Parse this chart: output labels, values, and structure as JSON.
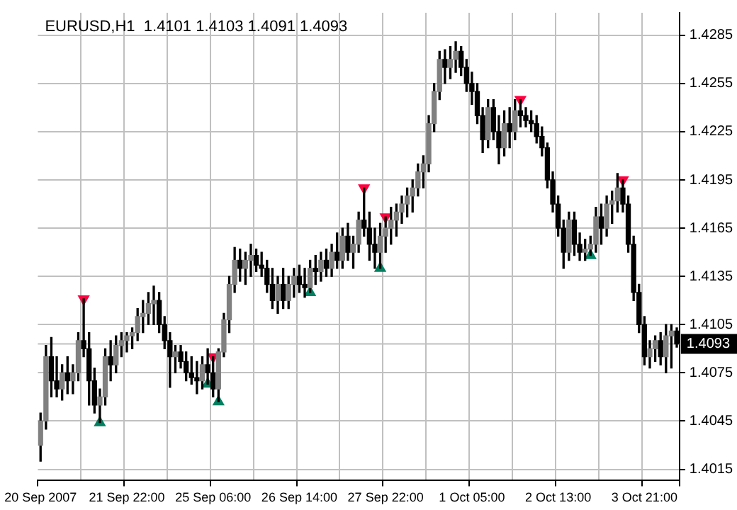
{
  "chart_data": {
    "type": "candlestick",
    "title": "EURUSD,H1  1.4101 1.4103 1.4091 1.4093",
    "categories": [
      "20 Sep 2007",
      null,
      null,
      null,
      null,
      null,
      null,
      null,
      null,
      null,
      null,
      null,
      null,
      null,
      null,
      null,
      "21 Sep 22:00",
      null,
      null,
      null,
      null,
      null,
      null,
      null,
      null,
      null,
      null,
      null,
      null,
      null,
      null,
      null,
      "25 Sep 06:00",
      null,
      null,
      null,
      null,
      null,
      null,
      null,
      null,
      null,
      null,
      null,
      null,
      null,
      null,
      null,
      "26 Sep 14:00",
      null,
      null,
      null,
      null,
      null,
      null,
      null,
      null,
      null,
      null,
      null,
      null,
      null,
      null,
      null,
      "27 Sep 22:00",
      null,
      null,
      null,
      null,
      null,
      null,
      null,
      null,
      null,
      null,
      null,
      null,
      null,
      null,
      null,
      "1 Oct 05:00",
      null,
      null,
      null,
      null,
      null,
      null,
      null,
      null,
      null,
      null,
      null,
      null,
      null,
      null,
      null,
      "2 Oct 13:00",
      null,
      null,
      null,
      null,
      null,
      null,
      null,
      null,
      null,
      null,
      null,
      null,
      null,
      null,
      null,
      "3 Oct 21:00",
      null,
      null,
      null,
      null,
      null,
      null
    ],
    "ohlc": [
      [
        1.403,
        1.405,
        1.402,
        1.4045
      ],
      [
        1.4045,
        1.4092,
        1.404,
        1.4085
      ],
      [
        1.4085,
        1.4097,
        1.406,
        1.407
      ],
      [
        1.407,
        1.4085,
        1.406,
        1.4065
      ],
      [
        1.4065,
        1.408,
        1.4058,
        1.4075
      ],
      [
        1.4075,
        1.4085,
        1.4062,
        1.407
      ],
      [
        1.407,
        1.408,
        1.4062,
        1.4075
      ],
      [
        1.4075,
        1.41,
        1.407,
        1.4095
      ],
      [
        1.4095,
        1.4121,
        1.4085,
        1.409
      ],
      [
        1.409,
        1.41,
        1.4055,
        1.407
      ],
      [
        1.407,
        1.4078,
        1.405,
        1.4055
      ],
      [
        1.4055,
        1.4065,
        1.4044,
        1.406
      ],
      [
        1.406,
        1.409,
        1.4055,
        1.4085
      ],
      [
        1.4085,
        1.4095,
        1.407,
        1.408
      ],
      [
        1.408,
        1.4098,
        1.4075,
        1.4092
      ],
      [
        1.4092,
        1.41,
        1.4085,
        1.4095
      ],
      [
        1.4095,
        1.41,
        1.4088,
        1.4098
      ],
      [
        1.4098,
        1.4103,
        1.409,
        1.41
      ],
      [
        1.41,
        1.4115,
        1.4095,
        1.411
      ],
      [
        1.411,
        1.412,
        1.41,
        1.4112
      ],
      [
        1.4112,
        1.4125,
        1.4105,
        1.4118
      ],
      [
        1.4118,
        1.4129,
        1.4105,
        1.412
      ],
      [
        1.412,
        1.4125,
        1.41,
        1.4105
      ],
      [
        1.4105,
        1.411,
        1.409,
        1.4095
      ],
      [
        1.4095,
        1.41,
        1.4066,
        1.4085
      ],
      [
        1.4085,
        1.4092,
        1.4075,
        1.4088
      ],
      [
        1.4088,
        1.4092,
        1.4078,
        1.4082
      ],
      [
        1.4082,
        1.4088,
        1.407,
        1.4075
      ],
      [
        1.4075,
        1.4085,
        1.4068,
        1.4072
      ],
      [
        1.4072,
        1.4082,
        1.4062,
        1.407
      ],
      [
        1.407,
        1.4085,
        1.4065,
        1.408
      ],
      [
        1.408,
        1.409,
        1.4068,
        1.4075
      ],
      [
        1.4075,
        1.4085,
        1.406,
        1.4065
      ],
      [
        1.4065,
        1.409,
        1.4057,
        1.4088
      ],
      [
        1.4088,
        1.4112,
        1.4085,
        1.4108
      ],
      [
        1.4108,
        1.4135,
        1.41,
        1.413
      ],
      [
        1.413,
        1.4153,
        1.4125,
        1.4145
      ],
      [
        1.4145,
        1.4152,
        1.4132,
        1.414
      ],
      [
        1.414,
        1.415,
        1.413,
        1.4145
      ],
      [
        1.4145,
        1.4155,
        1.4135,
        1.4148
      ],
      [
        1.4148,
        1.4152,
        1.4138,
        1.4142
      ],
      [
        1.4142,
        1.415,
        1.4135,
        1.414
      ],
      [
        1.414,
        1.4145,
        1.4125,
        1.413
      ],
      [
        1.413,
        1.414,
        1.4115,
        1.412
      ],
      [
        1.412,
        1.4135,
        1.4112,
        1.413
      ],
      [
        1.413,
        1.414,
        1.4115,
        1.412
      ],
      [
        1.412,
        1.4135,
        1.4115,
        1.413
      ],
      [
        1.413,
        1.414,
        1.4122,
        1.4135
      ],
      [
        1.4135,
        1.4142,
        1.4125,
        1.413
      ],
      [
        1.413,
        1.414,
        1.4122,
        1.4128
      ],
      [
        1.4128,
        1.4145,
        1.4125,
        1.414
      ],
      [
        1.414,
        1.4148,
        1.413,
        1.4138
      ],
      [
        1.4138,
        1.415,
        1.4132,
        1.4145
      ],
      [
        1.4145,
        1.4152,
        1.4135,
        1.414
      ],
      [
        1.414,
        1.4155,
        1.4135,
        1.415
      ],
      [
        1.415,
        1.4162,
        1.414,
        1.4145
      ],
      [
        1.4145,
        1.4165,
        1.414,
        1.416
      ],
      [
        1.416,
        1.4168,
        1.4145,
        1.415
      ],
      [
        1.415,
        1.416,
        1.414,
        1.4155
      ],
      [
        1.4155,
        1.4175,
        1.415,
        1.417
      ],
      [
        1.417,
        1.419,
        1.416,
        1.4165
      ],
      [
        1.4165,
        1.4175,
        1.4145,
        1.4155
      ],
      [
        1.4155,
        1.4165,
        1.414,
        1.415
      ],
      [
        1.415,
        1.4168,
        1.414,
        1.416
      ],
      [
        1.416,
        1.4172,
        1.415,
        1.4165
      ],
      [
        1.4165,
        1.4178,
        1.4155,
        1.417
      ],
      [
        1.417,
        1.418,
        1.416,
        1.4175
      ],
      [
        1.4175,
        1.4185,
        1.4168,
        1.418
      ],
      [
        1.418,
        1.419,
        1.4172,
        1.4185
      ],
      [
        1.4185,
        1.4195,
        1.4175,
        1.419
      ],
      [
        1.419,
        1.4205,
        1.4185,
        1.42
      ],
      [
        1.42,
        1.421,
        1.419,
        1.4205
      ],
      [
        1.4205,
        1.4235,
        1.42,
        1.423
      ],
      [
        1.423,
        1.4255,
        1.4225,
        1.425
      ],
      [
        1.425,
        1.4275,
        1.4245,
        1.427
      ],
      [
        1.427,
        1.4276,
        1.4255,
        1.4265
      ],
      [
        1.4265,
        1.4278,
        1.4258,
        1.427
      ],
      [
        1.427,
        1.4281,
        1.4262,
        1.4275
      ],
      [
        1.4275,
        1.4278,
        1.426,
        1.4265
      ],
      [
        1.4265,
        1.427,
        1.425,
        1.4255
      ],
      [
        1.4255,
        1.4262,
        1.4242,
        1.425
      ],
      [
        1.425,
        1.4255,
        1.423,
        1.4235
      ],
      [
        1.4235,
        1.424,
        1.4212,
        1.422
      ],
      [
        1.422,
        1.4245,
        1.4215,
        1.424
      ],
      [
        1.424,
        1.4245,
        1.422,
        1.4225
      ],
      [
        1.4225,
        1.4235,
        1.4205,
        1.4215
      ],
      [
        1.4215,
        1.4238,
        1.421,
        1.423
      ],
      [
        1.423,
        1.424,
        1.4215,
        1.4225
      ],
      [
        1.4225,
        1.4245,
        1.422,
        1.4238
      ],
      [
        1.4238,
        1.4245,
        1.4228,
        1.4235
      ],
      [
        1.4235,
        1.424,
        1.4228,
        1.4232
      ],
      [
        1.4232,
        1.4238,
        1.4225,
        1.423
      ],
      [
        1.423,
        1.4235,
        1.4218,
        1.4222
      ],
      [
        1.4222,
        1.4228,
        1.421,
        1.4215
      ],
      [
        1.4215,
        1.4218,
        1.419,
        1.4195
      ],
      [
        1.4195,
        1.42,
        1.4175,
        1.418
      ],
      [
        1.418,
        1.4185,
        1.416,
        1.4165
      ],
      [
        1.4165,
        1.417,
        1.414,
        1.415
      ],
      [
        1.415,
        1.4175,
        1.4145,
        1.417
      ],
      [
        1.417,
        1.4175,
        1.4148,
        1.4155
      ],
      [
        1.4155,
        1.4162,
        1.4145,
        1.415
      ],
      [
        1.415,
        1.4158,
        1.4145,
        1.4152
      ],
      [
        1.4152,
        1.416,
        1.4148,
        1.4155
      ],
      [
        1.4155,
        1.4178,
        1.415,
        1.4172
      ],
      [
        1.4172,
        1.418,
        1.4155,
        1.4165
      ],
      [
        1.4165,
        1.4185,
        1.416,
        1.418
      ],
      [
        1.418,
        1.4188,
        1.4168,
        1.4182
      ],
      [
        1.4182,
        1.4199,
        1.4175,
        1.419
      ],
      [
        1.419,
        1.4195,
        1.4175,
        1.418
      ],
      [
        1.418,
        1.4185,
        1.415,
        1.4155
      ],
      [
        1.4155,
        1.416,
        1.412,
        1.4125
      ],
      [
        1.4125,
        1.413,
        1.41,
        1.4105
      ],
      [
        1.4105,
        1.411,
        1.408,
        1.4085
      ],
      [
        1.4085,
        1.4095,
        1.4078,
        1.409
      ],
      [
        1.409,
        1.4098,
        1.4082,
        1.4095
      ],
      [
        1.4095,
        1.41,
        1.408,
        1.4085
      ],
      [
        1.4085,
        1.4105,
        1.4075,
        1.4098
      ],
      [
        1.4098,
        1.4105,
        1.4078,
        1.4101
      ],
      [
        1.4101,
        1.4103,
        1.4091,
        1.4093
      ]
    ],
    "series": [
      {
        "type": "scatter",
        "color": "#ff0040",
        "marker": "triangle",
        "values": [
          null,
          null,
          null,
          null,
          null,
          null,
          null,
          null,
          1.4121,
          null,
          null,
          null,
          null,
          null,
          null,
          null,
          null,
          null,
          null,
          null,
          null,
          null,
          null,
          null,
          null,
          null,
          null,
          null,
          null,
          null,
          null,
          null,
          1.4085,
          null,
          null,
          null,
          null,
          null,
          null,
          null,
          null,
          null,
          null,
          null,
          null,
          null,
          null,
          null,
          null,
          null,
          null,
          null,
          null,
          null,
          null,
          null,
          null,
          null,
          null,
          null,
          1.419,
          null,
          null,
          null,
          1.4172,
          null,
          null,
          null,
          null,
          null,
          null,
          null,
          null,
          null,
          null,
          null,
          null,
          null,
          null,
          null,
          null,
          null,
          null,
          null,
          null,
          null,
          null,
          null,
          null,
          1.4245,
          null,
          null,
          null,
          null,
          null,
          null,
          null,
          null,
          null,
          null,
          null,
          null,
          null,
          null,
          null,
          null,
          null,
          null,
          1.4195,
          null,
          null,
          null,
          null,
          null,
          null,
          null,
          null,
          null,
          null
        ]
      },
      {
        "type": "scatter",
        "color": "#008060",
        "marker": "triangle",
        "values": [
          null,
          null,
          null,
          null,
          null,
          null,
          null,
          null,
          null,
          null,
          null,
          1.4044,
          null,
          null,
          null,
          null,
          null,
          null,
          null,
          null,
          null,
          null,
          null,
          null,
          null,
          null,
          null,
          null,
          null,
          null,
          null,
          1.4068,
          null,
          1.4057,
          null,
          null,
          null,
          null,
          null,
          null,
          null,
          null,
          null,
          null,
          null,
          null,
          null,
          null,
          null,
          null,
          1.4125,
          null,
          null,
          null,
          null,
          null,
          null,
          null,
          null,
          null,
          null,
          null,
          null,
          1.414,
          null,
          null,
          null,
          null,
          null,
          null,
          null,
          null,
          null,
          null,
          null,
          null,
          null,
          null,
          null,
          null,
          null,
          null,
          null,
          null,
          null,
          null,
          null,
          null,
          null,
          null,
          null,
          null,
          null,
          null,
          null,
          null,
          null,
          null,
          null,
          null,
          null,
          null,
          1.4148,
          null,
          null,
          null,
          null,
          null,
          null,
          null,
          null,
          null,
          null,
          null,
          null,
          null,
          null,
          null,
          null
        ]
      }
    ],
    "ylim": [
      1.4008,
      1.4299
    ],
    "yticks": [
      1.4015,
      1.4045,
      1.4075,
      1.4105,
      1.4135,
      1.4165,
      1.4195,
      1.4225,
      1.4255,
      1.4285
    ],
    "ref_lines": [
      {
        "axis": "y",
        "value": 1.4093,
        "label": "1.4093",
        "color": "#c0c0c0"
      }
    ],
    "grid": true,
    "legend": false
  }
}
